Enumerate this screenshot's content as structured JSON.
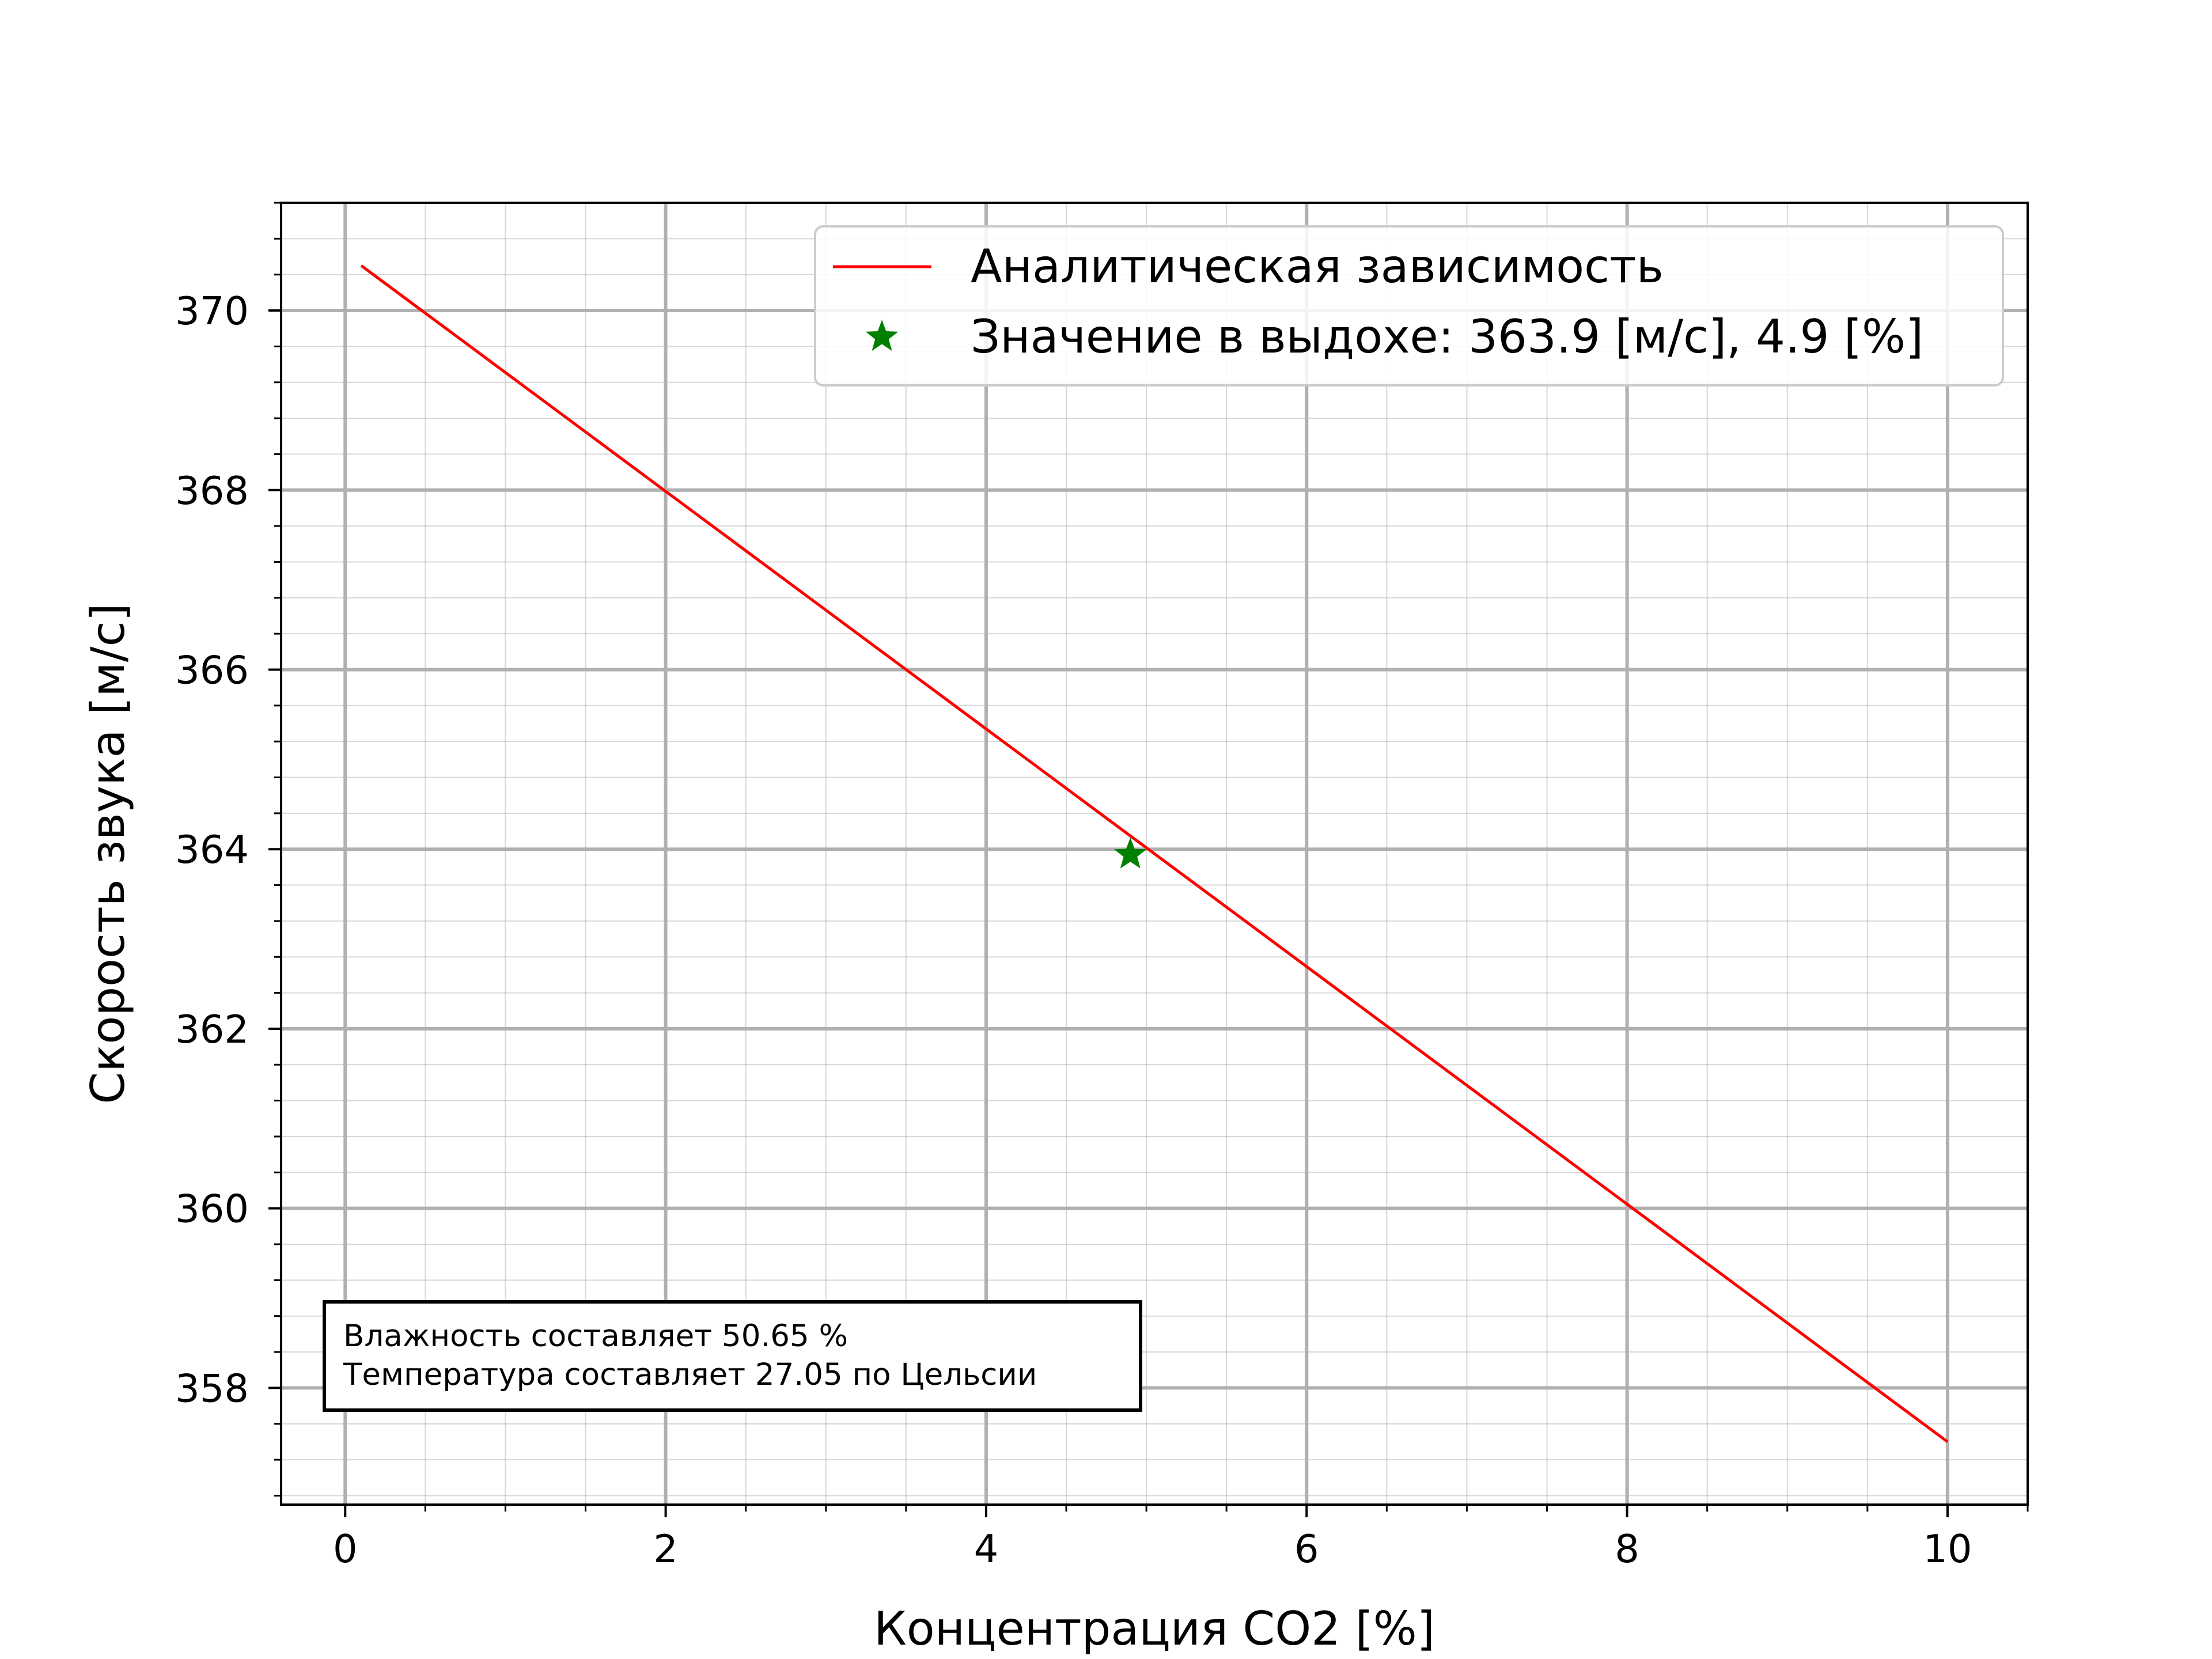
{
  "chart_data": {
    "type": "line",
    "xlabel": "Концентрация CO2 [%]",
    "ylabel": "Скорость звука [м/с]",
    "xlim": [
      -0.4,
      10.5
    ],
    "ylim": [
      356.7,
      371.2
    ],
    "x_ticks": [
      0,
      2,
      4,
      6,
      8,
      10
    ],
    "y_ticks": [
      358,
      360,
      362,
      364,
      366,
      368,
      370
    ],
    "x_tick_labels": [
      "0",
      "2",
      "4",
      "6",
      "8",
      "10"
    ],
    "y_tick_labels": [
      "358",
      "360",
      "362",
      "364",
      "366",
      "368",
      "370"
    ],
    "x_minor_step": 0.5,
    "y_minor_step": 0.4,
    "grid": true,
    "minor_grid": true,
    "legend_position": "top-right",
    "series": [
      {
        "name": "Аналитическая зависимость",
        "kind": "line",
        "color": "#ff0000",
        "x": [
          0.1,
          10.0
        ],
        "y": [
          370.5,
          357.4
        ]
      },
      {
        "name": "Значение в выдохе: 363.9 [м/с], 4.9 [%]",
        "kind": "marker",
        "marker": "star",
        "color": "#008000",
        "x": [
          4.9
        ],
        "y": [
          363.94
        ]
      }
    ],
    "annotation_lines": [
      "Влажность составляет 50.65 %",
      "Температура составляет 27.05 по Цельсии"
    ]
  }
}
